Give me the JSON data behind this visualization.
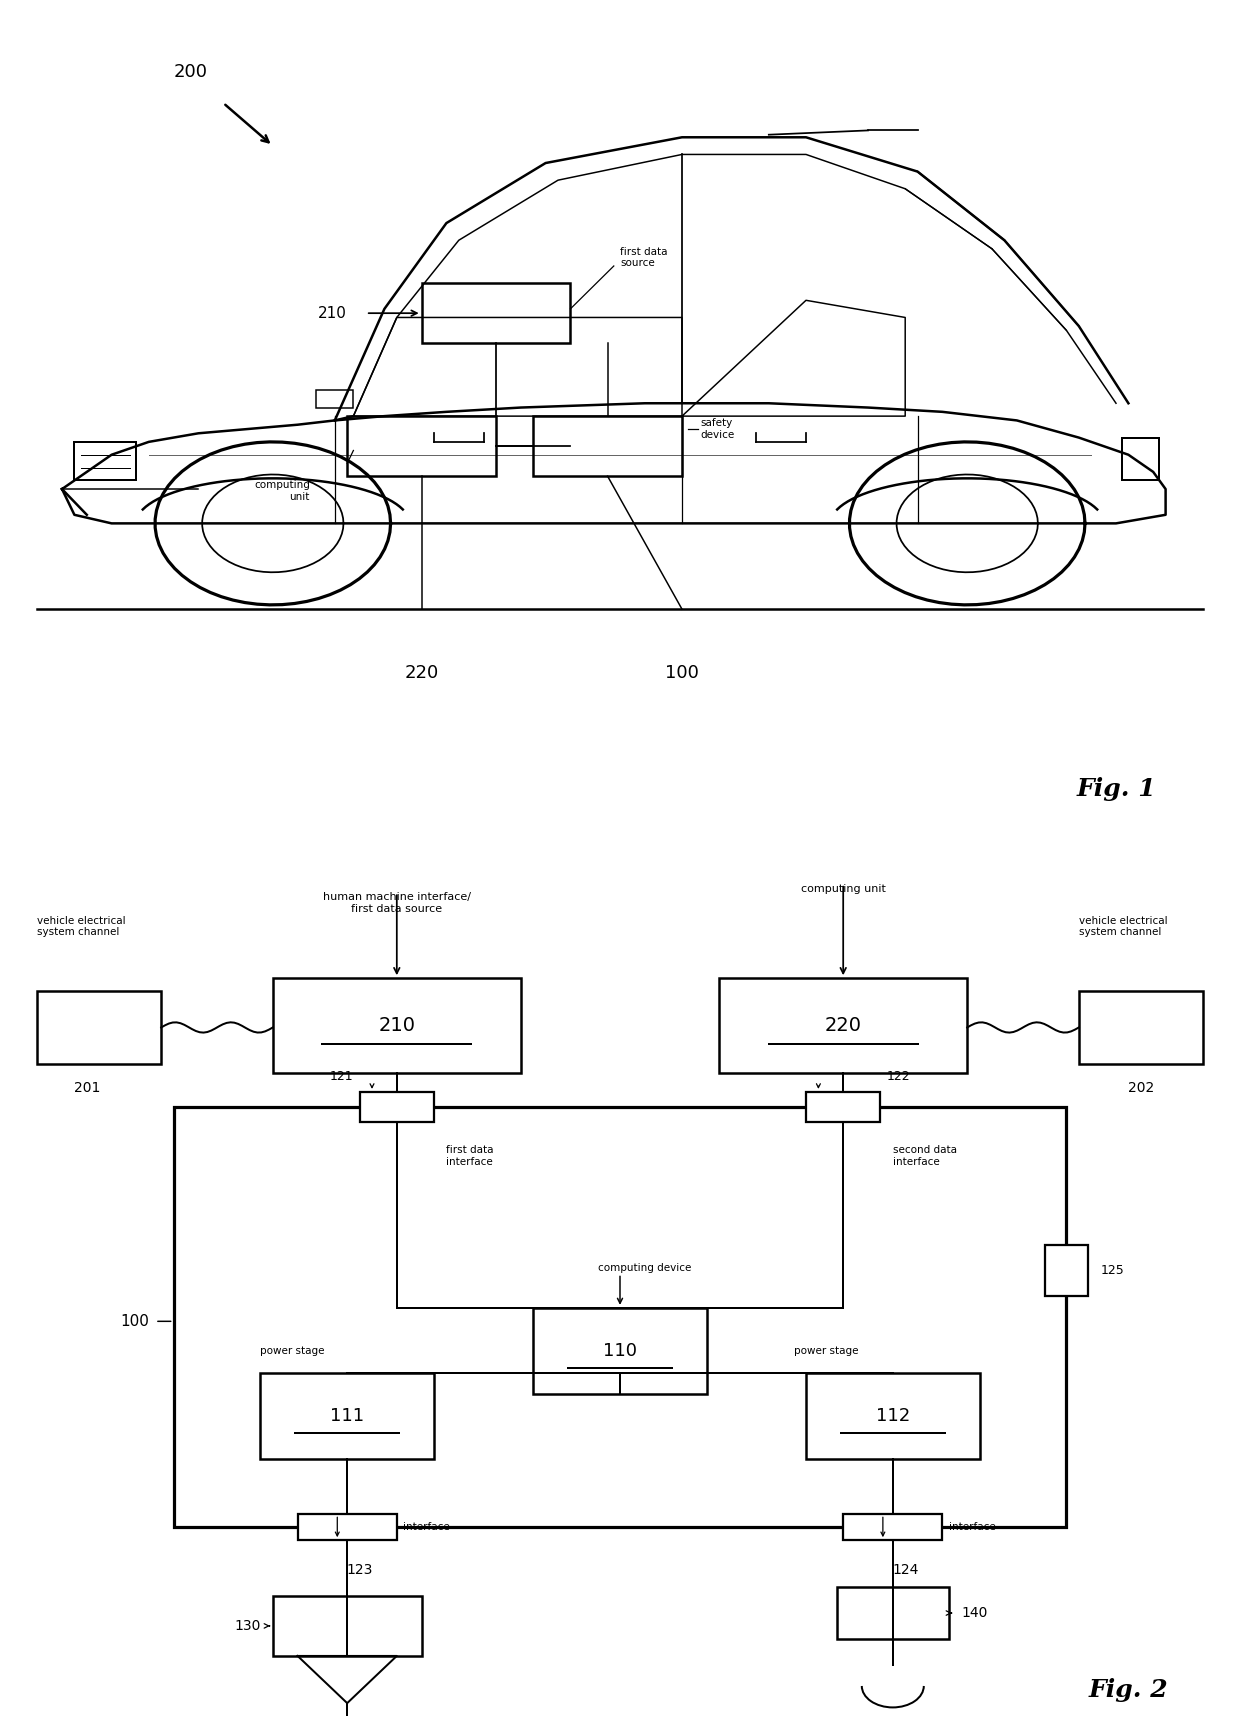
{
  "bg_color": "#ffffff",
  "line_color": "#000000",
  "fig1": {
    "title": "Fig. 1",
    "car_label": "200",
    "label_210": "210",
    "label_220": "220",
    "label_100": "100",
    "text_first_data_source": "first data\nsource",
    "text_computing_unit": "computing\nunit",
    "text_safety_device": "safety\ndevice"
  },
  "fig2": {
    "title": "Fig. 2",
    "text_hmi": "human machine interface/\nfirst data source",
    "text_computing_unit": "computing unit",
    "text_vehicle_elec_l": "vehicle electrical\nsystem channel",
    "text_vehicle_elec_r": "vehicle electrical\nsystem channel",
    "text_first_data_iface": "first data\ninterface",
    "text_second_data_iface": "second data\ninterface",
    "text_computing_device": "computing device",
    "text_power_stage_l": "power stage",
    "text_power_stage_r": "power stage",
    "text_interface_l": "interface",
    "text_interface_r": "interface",
    "label_210": "210",
    "label_220": "220",
    "label_201": "201",
    "label_202": "202",
    "label_100": "100",
    "label_110": "110",
    "label_111": "111",
    "label_112": "112",
    "label_121": "121",
    "label_122": "122",
    "label_123": "123",
    "label_124": "124",
    "label_125": "125",
    "label_130": "130",
    "label_140": "140"
  }
}
